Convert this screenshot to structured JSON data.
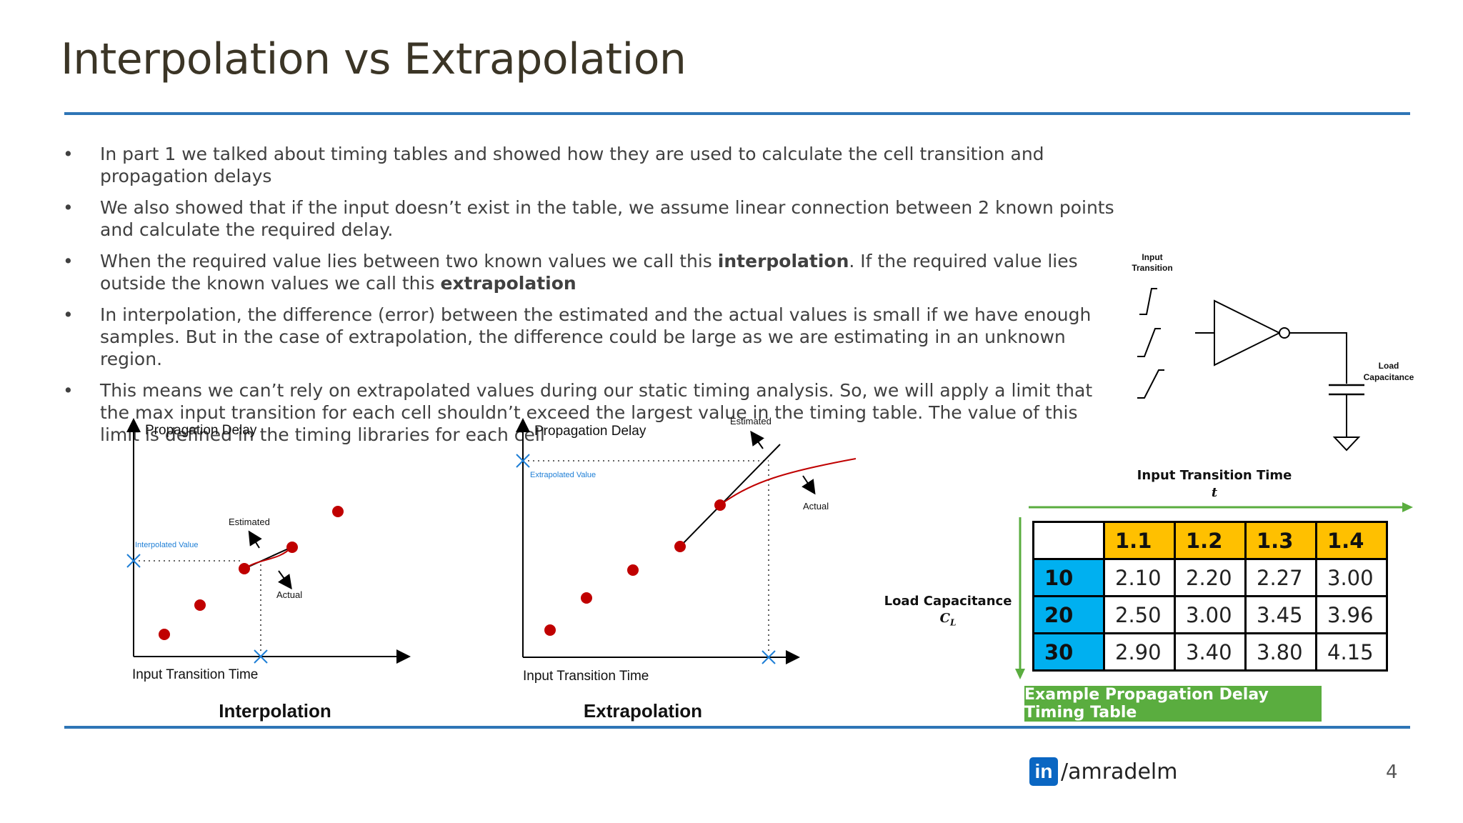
{
  "slide": {
    "title": "Interpolation vs Extrapolation",
    "page_number": "4"
  },
  "bullets": [
    {
      "marker": "•",
      "segments": [
        {
          "text": "In part 1 we talked about timing tables and showed how they are used to calculate the cell transition and propagation delays",
          "bold": false
        }
      ]
    },
    {
      "marker": "•",
      "segments": [
        {
          "text": "We also showed that if the input doesn’t exist in the table, we assume linear connection between 2 known points and calculate the required delay.",
          "bold": false
        }
      ]
    },
    {
      "marker": "•",
      "segments": [
        {
          "text": "When the required value lies between two known values we call this ",
          "bold": false
        },
        {
          "text": "interpolation",
          "bold": true
        },
        {
          "text": ". If the required value lies outside the known values we call this ",
          "bold": false
        },
        {
          "text": "extrapolation",
          "bold": true
        }
      ]
    },
    {
      "marker": "•",
      "segments": [
        {
          "text": "In interpolation, the difference (error) between the estimated and the actual values is small if we have enough samples. But in the case of extrapolation, the difference could be large as we are estimating in an unknown region.",
          "bold": false
        }
      ]
    },
    {
      "marker": "•",
      "segments": [
        {
          "text": "This means we can’t rely on extrapolated values during our static timing analysis. So, we will apply a limit that the max input transition for each cell shouldn’t exceed the largest value in the timing table. The value of this limit is defined in the timing libraries for each cell",
          "bold": false
        }
      ]
    }
  ],
  "interpolation_plot": {
    "ylabel": "Propagation Delay",
    "xlabel": "Input Transition Time",
    "estimated_label": "Estimated",
    "actual_label": "Actual",
    "value_label": "Interpolated Value",
    "caption": "Interpolation"
  },
  "extrapolation_plot": {
    "ylabel": "Propagation Delay",
    "xlabel": "Input Transition Time",
    "estimated_label": "Estimated",
    "actual_label": "Actual",
    "value_label": "Extrapolated Value",
    "caption": "Extrapolation"
  },
  "circuit": {
    "input_label_line1": "Input",
    "input_label_line2": "Transition",
    "load_label_line1": "Load",
    "load_label_line2": "Capacitance"
  },
  "timing_table": {
    "column_axis_title": "Input Transition Time",
    "column_axis_symbol": "t",
    "row_axis_title": "Load Capacitance",
    "row_axis_symbol": "C",
    "row_axis_subscript": "L",
    "column_headers": [
      "1.1",
      "1.2",
      "1.3",
      "1.4"
    ],
    "rows": [
      {
        "header": "10",
        "values": [
          "2.10",
          "2.20",
          "2.27",
          "3.00"
        ]
      },
      {
        "header": "20",
        "values": [
          "2.50",
          "3.00",
          "3.45",
          "3.96"
        ]
      },
      {
        "header": "30",
        "values": [
          "2.90",
          "3.40",
          "3.80",
          "4.15"
        ]
      }
    ],
    "caption": "Example Propagation Delay Timing Table"
  },
  "footer": {
    "linkedin_icon_text": "in",
    "handle": "/amradelm"
  },
  "colors": {
    "accent_rule": "#2e75b6",
    "header_yellow": "#ffc000",
    "header_blue": "#00b0f0",
    "banner_green": "#5aad3f",
    "data_point_red": "#c00000",
    "marker_blue": "#1f7fd6"
  }
}
